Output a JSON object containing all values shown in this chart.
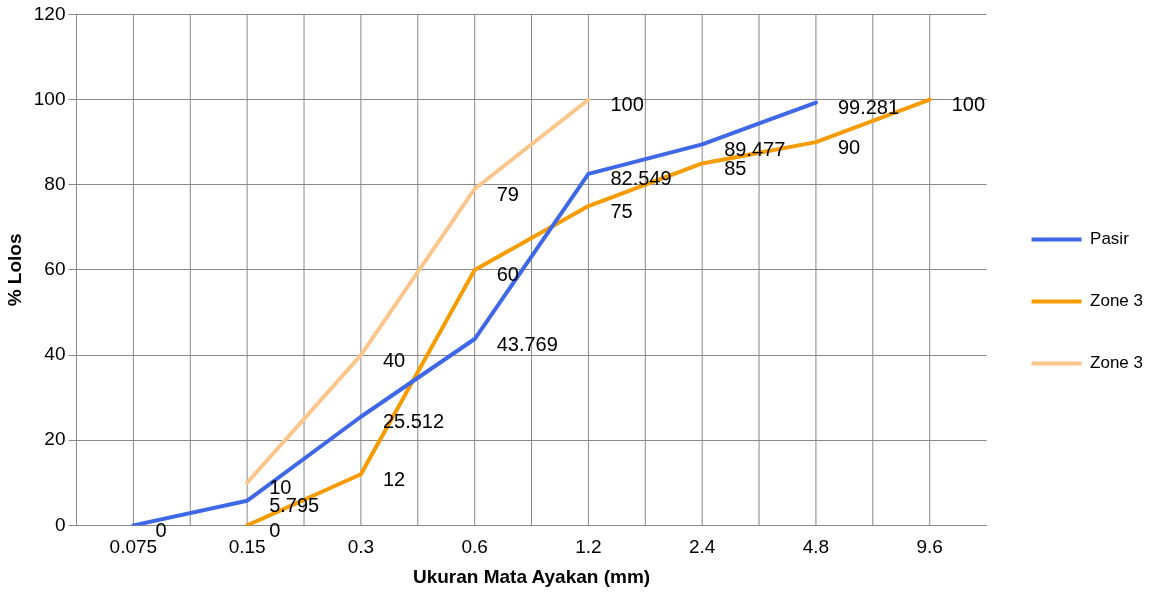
{
  "chart_data": {
    "type": "line",
    "xlabel": "Ukuran Mata Ayakan (mm)",
    "ylabel": "% Lolos",
    "categories": [
      "0.075",
      "0.15",
      "0.3",
      "0.6",
      "1.2",
      "2.4",
      "4.8",
      "9.6"
    ],
    "series": [
      {
        "name": "Pasir",
        "color": "#3f68e6",
        "values": [
          0,
          5.795,
          25.512,
          43.769,
          82.549,
          89.477,
          99.281,
          null
        ]
      },
      {
        "name": "Zone 3",
        "color": "#f59c00",
        "values": [
          null,
          0,
          12,
          60,
          75,
          85,
          90,
          100
        ]
      },
      {
        "name": "Zone 3",
        "color": "#fbc68c",
        "values": [
          null,
          10,
          40,
          79,
          100,
          null,
          null,
          null
        ]
      }
    ],
    "ylim": [
      0,
      120
    ],
    "yticks": [
      0,
      20,
      40,
      60,
      80,
      100,
      120
    ],
    "grid": true,
    "legend": "right",
    "marker": "none",
    "line_style": "solid",
    "data_labels": true
  }
}
